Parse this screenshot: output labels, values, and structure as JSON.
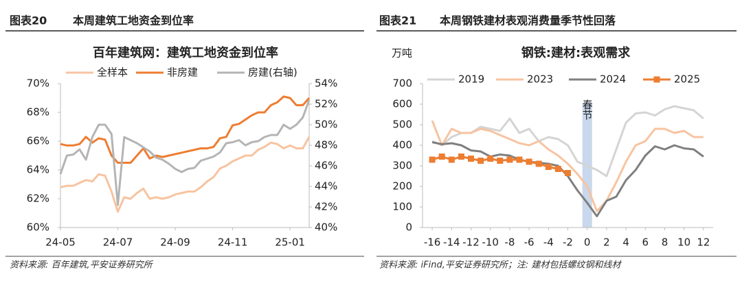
{
  "figures": [
    {
      "label": "图表20",
      "caption": "本周建筑工地资金到位率",
      "source": "资料来源: 百年建筑,平安证券研究所"
    },
    {
      "label": "图表21",
      "caption": "本周钢铁建材表观消费量季节性回落",
      "source": "资料来源: iFind,平安证券研究所；注: 建材包括螺纹钢和线材"
    }
  ],
  "chart_data": [
    {
      "type": "line",
      "title": "百年建筑网：建筑工地资金到位率",
      "categories": [
        "24-05",
        null,
        null,
        null,
        null,
        null,
        null,
        null,
        null,
        "24-07",
        null,
        null,
        null,
        null,
        null,
        null,
        null,
        null,
        "24-09",
        null,
        null,
        null,
        null,
        null,
        null,
        null,
        null,
        "24-11",
        null,
        null,
        null,
        null,
        null,
        null,
        null,
        null,
        "25-01",
        null,
        null,
        null
      ],
      "series": [
        {
          "name": "全样本",
          "color": "#f7c3a0",
          "values": [
            62.8,
            62.9,
            62.9,
            63.1,
            63.3,
            63.2,
            63.7,
            63.6,
            62.5,
            61.1,
            62.1,
            62.0,
            62.4,
            62.7,
            62.0,
            62.1,
            62.0,
            62.1,
            62.3,
            62.4,
            62.5,
            62.5,
            62.8,
            63.2,
            63.5,
            64.1,
            64.3,
            64.6,
            64.8,
            65.0,
            65.0,
            65.4,
            65.6,
            65.9,
            65.8,
            65.5,
            65.7,
            65.5,
            65.5,
            66.3
          ]
        },
        {
          "name": "非房建",
          "color": "#ed7d31",
          "values": [
            65.8,
            65.7,
            65.7,
            65.8,
            66.3,
            65.9,
            66.2,
            66.1,
            65.0,
            64.5,
            64.5,
            64.5,
            65.0,
            65.5,
            64.8,
            65.0,
            64.9,
            65.0,
            65.1,
            65.2,
            65.3,
            65.4,
            65.5,
            65.5,
            65.6,
            66.2,
            66.3,
            67.1,
            67.2,
            67.5,
            67.8,
            68.0,
            68.0,
            68.5,
            68.7,
            69.1,
            69.0,
            68.5,
            68.5,
            69.0
          ]
        },
        {
          "name": "房建(右轴)",
          "color": "#b4b4b4",
          "axis": "y2",
          "values": [
            45.2,
            47.0,
            47.1,
            47.6,
            46.6,
            48.8,
            50.0,
            50.0,
            49.1,
            42.2,
            48.8,
            48.5,
            48.2,
            47.8,
            47.4,
            46.8,
            46.6,
            46.2,
            45.7,
            45.4,
            45.7,
            45.8,
            46.5,
            46.7,
            46.9,
            47.3,
            48.2,
            48.3,
            48.5,
            48.0,
            48.3,
            48.4,
            48.8,
            49.0,
            49.0,
            50.0,
            49.6,
            50.0,
            50.7,
            52.4
          ]
        }
      ],
      "ylim": [
        60,
        70
      ],
      "yticks": [
        {
          "value": 60,
          "label": "60%"
        },
        {
          "value": 62,
          "label": "62%"
        },
        {
          "value": 64,
          "label": "64%"
        },
        {
          "value": 66,
          "label": "66%"
        },
        {
          "value": 68,
          "label": "68%"
        },
        {
          "value": 70,
          "label": "70%"
        }
      ],
      "y2lim": [
        40,
        54
      ],
      "y2ticks": [
        {
          "value": 40,
          "label": "40%"
        },
        {
          "value": 42,
          "label": "42%"
        },
        {
          "value": 44,
          "label": "44%"
        },
        {
          "value": 46,
          "label": "46%"
        },
        {
          "value": 48,
          "label": "48%"
        },
        {
          "value": 50,
          "label": "50%"
        },
        {
          "value": 52,
          "label": "52%"
        },
        {
          "value": 54,
          "label": "54%"
        }
      ],
      "legend": "top",
      "grid": false
    },
    {
      "type": "line",
      "title": "钢铁:建材:表观需求",
      "y_label": "万吨",
      "x": [
        -16,
        -15,
        -14,
        -13,
        -12,
        -11,
        -10,
        -9,
        -8,
        -7,
        -6,
        -5,
        -4,
        -3,
        -2,
        -1,
        0,
        1,
        2,
        3,
        4,
        5,
        6,
        7,
        8,
        9,
        10,
        11,
        12
      ],
      "series": [
        {
          "name": "2019",
          "color": "#d4d4d4",
          "values": [
            420,
            400,
            440,
            460,
            460,
            490,
            480,
            470,
            530,
            460,
            480,
            420,
            440,
            430,
            400,
            320,
            300,
            280,
            250,
            380,
            510,
            555,
            560,
            545,
            575,
            590,
            580,
            570,
            530
          ]
        },
        {
          "name": "2023",
          "color": "#f7c3a0",
          "values": [
            520,
            400,
            480,
            460,
            460,
            480,
            470,
            450,
            430,
            410,
            400,
            420,
            380,
            350,
            310,
            260,
            200,
            80,
            130,
            220,
            320,
            400,
            420,
            480,
            480,
            460,
            470,
            440,
            440
          ]
        },
        {
          "name": "2024",
          "color": "#7f7f7f",
          "values": [
            415,
            405,
            410,
            400,
            375,
            370,
            345,
            355,
            350,
            330,
            320,
            315,
            310,
            300,
            250,
            180,
            120,
            55,
            130,
            150,
            230,
            280,
            350,
            395,
            380,
            400,
            385,
            380,
            345
          ]
        },
        {
          "name": "2025",
          "color": "#ed7d31",
          "marker": "square",
          "values": [
            330,
            345,
            330,
            345,
            335,
            325,
            335,
            325,
            330,
            330,
            320,
            310,
            295,
            285,
            265,
            null,
            null,
            null,
            null,
            null,
            null,
            null,
            null,
            null,
            null,
            null,
            null,
            null,
            null
          ]
        }
      ],
      "xlim": [
        -17,
        13
      ],
      "xticks": [
        -16,
        -14,
        -12,
        -10,
        -8,
        -6,
        -4,
        -2,
        0,
        2,
        4,
        6,
        8,
        10,
        12
      ],
      "ylim": [
        0,
        700
      ],
      "yticks": [
        0,
        100,
        200,
        300,
        400,
        500,
        600,
        700
      ],
      "annotations": [
        {
          "text": "春节",
          "x": 0
        }
      ],
      "legend": "top",
      "grid": false
    }
  ]
}
